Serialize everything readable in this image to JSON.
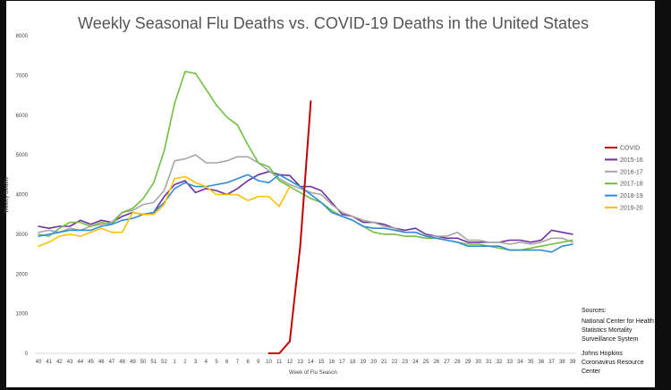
{
  "chart_data": {
    "type": "line",
    "title": "Weekly Seasonal Flu Deaths vs. COVID-19 Deaths in the United States",
    "xlabel": "Week of Flu Season",
    "ylabel": "Weekly Deaths",
    "ylim": [
      0,
      8000
    ],
    "yticks": [
      0,
      1000,
      2000,
      3000,
      4000,
      5000,
      6000,
      7000,
      8000
    ],
    "grid": false,
    "legend_position": "right",
    "categories": [
      "40",
      "41",
      "42",
      "43",
      "44",
      "45",
      "46",
      "47",
      "48",
      "49",
      "50",
      "51",
      "52",
      "1",
      "2",
      "3",
      "4",
      "5",
      "6",
      "7",
      "8",
      "9",
      "10",
      "11",
      "12",
      "13",
      "14",
      "15",
      "16",
      "17",
      "18",
      "19",
      "20",
      "21",
      "22",
      "23",
      "24",
      "25",
      "26",
      "27",
      "28",
      "29",
      "30",
      "31",
      "32",
      "33",
      "34",
      "35",
      "36",
      "37",
      "38",
      "39"
    ],
    "series": [
      {
        "name": "COVID",
        "color": "#c00000",
        "values": [
          null,
          null,
          null,
          null,
          null,
          null,
          null,
          null,
          null,
          null,
          null,
          null,
          null,
          null,
          null,
          null,
          null,
          null,
          null,
          null,
          null,
          null,
          0,
          0,
          300,
          2700,
          6350,
          null,
          null,
          null,
          null,
          null,
          null,
          null,
          null,
          null,
          null,
          null,
          null,
          null,
          null,
          null,
          null,
          null,
          null,
          null,
          null,
          null,
          null,
          null,
          null,
          null
        ]
      },
      {
        "name": "2015-16",
        "color": "#7030a0",
        "values": [
          3200,
          3150,
          3200,
          3200,
          3350,
          3250,
          3350,
          3300,
          3450,
          3550,
          3500,
          3550,
          3950,
          4250,
          4350,
          4050,
          4150,
          4100,
          4000,
          4150,
          4350,
          4500,
          4580,
          4500,
          4480,
          4200,
          4200,
          4100,
          3800,
          3500,
          3450,
          3300,
          3300,
          3250,
          3150,
          3100,
          3150,
          3000,
          2950,
          2900,
          2900,
          2800,
          2800,
          2800,
          2800,
          2850,
          2850,
          2800,
          2850,
          3100,
          3050,
          3000
        ]
      },
      {
        "name": "2016-17",
        "color": "#a6a6a6",
        "values": [
          3050,
          3100,
          3050,
          3150,
          3100,
          3200,
          3250,
          3300,
          3550,
          3600,
          3750,
          3800,
          4100,
          4850,
          4900,
          5000,
          4800,
          4800,
          4850,
          4950,
          4950,
          4800,
          4600,
          4400,
          4250,
          4150,
          4050,
          4000,
          3750,
          3550,
          3450,
          3350,
          3300,
          3200,
          3150,
          3050,
          3050,
          2950,
          2950,
          2950,
          3050,
          2850,
          2850,
          2800,
          2800,
          2750,
          2800,
          2750,
          2800,
          2900,
          2900,
          2800
        ]
      },
      {
        "name": "2017-18",
        "color": "#70c040",
        "values": [
          3000,
          2950,
          3150,
          3300,
          3300,
          3200,
          3300,
          3250,
          3550,
          3650,
          3900,
          4300,
          5100,
          6300,
          7100,
          7050,
          6650,
          6250,
          5950,
          5750,
          5250,
          4800,
          4700,
          4350,
          4200,
          4050,
          3900,
          3800,
          3600,
          3450,
          3350,
          3200,
          3050,
          3000,
          3000,
          2950,
          2950,
          2900,
          2900,
          2850,
          2800,
          2750,
          2750,
          2700,
          2650,
          2600,
          2600,
          2650,
          2700,
          2750,
          2800,
          2850
        ]
      },
      {
        "name": "2018-19",
        "color": "#2e8bd8",
        "values": [
          2950,
          3000,
          3050,
          3100,
          3100,
          3100,
          3200,
          3250,
          3350,
          3400,
          3500,
          3550,
          3800,
          4150,
          4300,
          4200,
          4200,
          4250,
          4300,
          4400,
          4500,
          4350,
          4300,
          4500,
          4350,
          4200,
          4000,
          3800,
          3550,
          3450,
          3350,
          3200,
          3150,
          3150,
          3100,
          3050,
          3050,
          2950,
          2900,
          2850,
          2800,
          2700,
          2700,
          2700,
          2700,
          2600,
          2600,
          2600,
          2600,
          2550,
          2700,
          2750
        ]
      },
      {
        "name": "2019-20",
        "color": "#ffc000",
        "values": [
          2700,
          2800,
          2950,
          3000,
          2950,
          3050,
          3150,
          3050,
          3050,
          3550,
          3500,
          3500,
          3750,
          4400,
          4450,
          4300,
          4200,
          4000,
          4000,
          4000,
          3850,
          3950,
          3950,
          3700,
          4200,
          null,
          null,
          null,
          null,
          null,
          null,
          null,
          null,
          null,
          null,
          null,
          null,
          null,
          null,
          null,
          null,
          null,
          null,
          null,
          null,
          null,
          null,
          null,
          null,
          null,
          null,
          null
        ]
      }
    ]
  },
  "sources": {
    "heading": "Sources:",
    "lines": [
      "National Center for Health",
      "Statistics Mortality",
      "Surveillance System",
      "Johns Hopkins",
      "Coronavirus Resource",
      "Center"
    ]
  }
}
